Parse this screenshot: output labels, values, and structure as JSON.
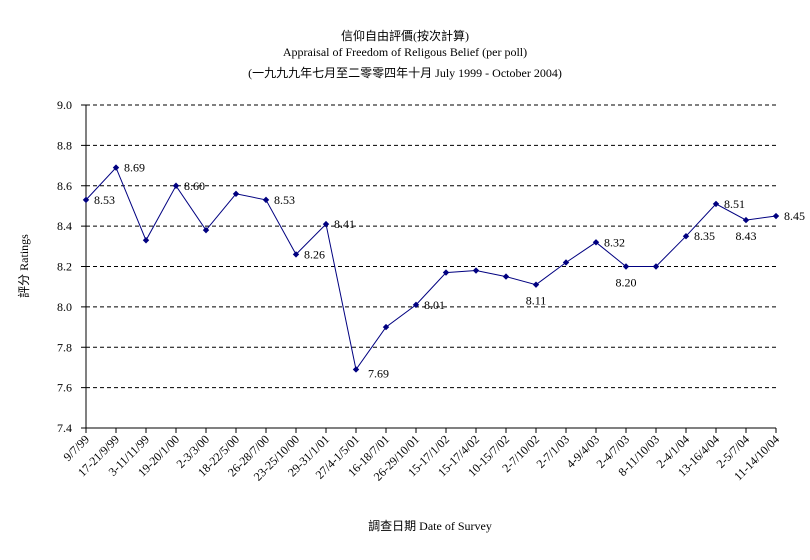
{
  "chart_data": {
    "type": "line",
    "title": "信仰自由評價(按次計算)",
    "subtitle": "Appraisal of Freedom of Religous Belief (per poll)",
    "period": "(一九九九年七月至二零零四年十月 July 1999 - October 2004)",
    "xlabel": "調查日期 Date of Survey",
    "ylabel": "評分 Ratings",
    "ylim": [
      7.4,
      9.0
    ],
    "yticks": [
      "9.0",
      "8.8",
      "8.6",
      "8.4",
      "8.2",
      "8.0",
      "7.8",
      "7.6",
      "7.4"
    ],
    "grid": "horizontal dashed",
    "legend": "none",
    "series_color": "#000080",
    "categories": [
      "9/7/99",
      "17-21/9/99",
      "3-11/11/99",
      "19-20/1/00",
      "2-3/3/00",
      "18-22/5/00",
      "26-28/7/00",
      "23-25/10/00",
      "29-31/1/01",
      "27/4-1/5/01",
      "16-18/7/01",
      "26-29/10/01",
      "15-17/1/02",
      "15-17/4/02",
      "10-15/7/02",
      "2-7/10/02",
      "2-7/1/03",
      "4-9/4/03",
      "2-4/7/03",
      "8-11/10/03",
      "2-4/1/04",
      "13-16/4/04",
      "2-5/7/04",
      "11-14/10/04"
    ],
    "values": [
      8.53,
      8.69,
      8.33,
      8.6,
      8.38,
      8.56,
      8.53,
      8.26,
      8.41,
      7.69,
      7.9,
      8.01,
      8.17,
      8.18,
      8.15,
      8.11,
      8.22,
      8.32,
      8.2,
      8.2,
      8.35,
      8.51,
      8.43,
      8.45
    ],
    "data_labels": [
      {
        "index": 0,
        "text": "8.53"
      },
      {
        "index": 1,
        "text": "8.69"
      },
      {
        "index": 3,
        "text": "8.60"
      },
      {
        "index": 6,
        "text": "8.53"
      },
      {
        "index": 7,
        "text": "8.26"
      },
      {
        "index": 8,
        "text": "8.41"
      },
      {
        "index": 9,
        "text": "7.69"
      },
      {
        "index": 11,
        "text": "8.01"
      },
      {
        "index": 15,
        "text": "8.11"
      },
      {
        "index": 17,
        "text": "8.32"
      },
      {
        "index": 18,
        "text": "8.20"
      },
      {
        "index": 20,
        "text": "8.35"
      },
      {
        "index": 21,
        "text": "8.51"
      },
      {
        "index": 22,
        "text": "8.43"
      },
      {
        "index": 23,
        "text": "8.45"
      }
    ]
  }
}
